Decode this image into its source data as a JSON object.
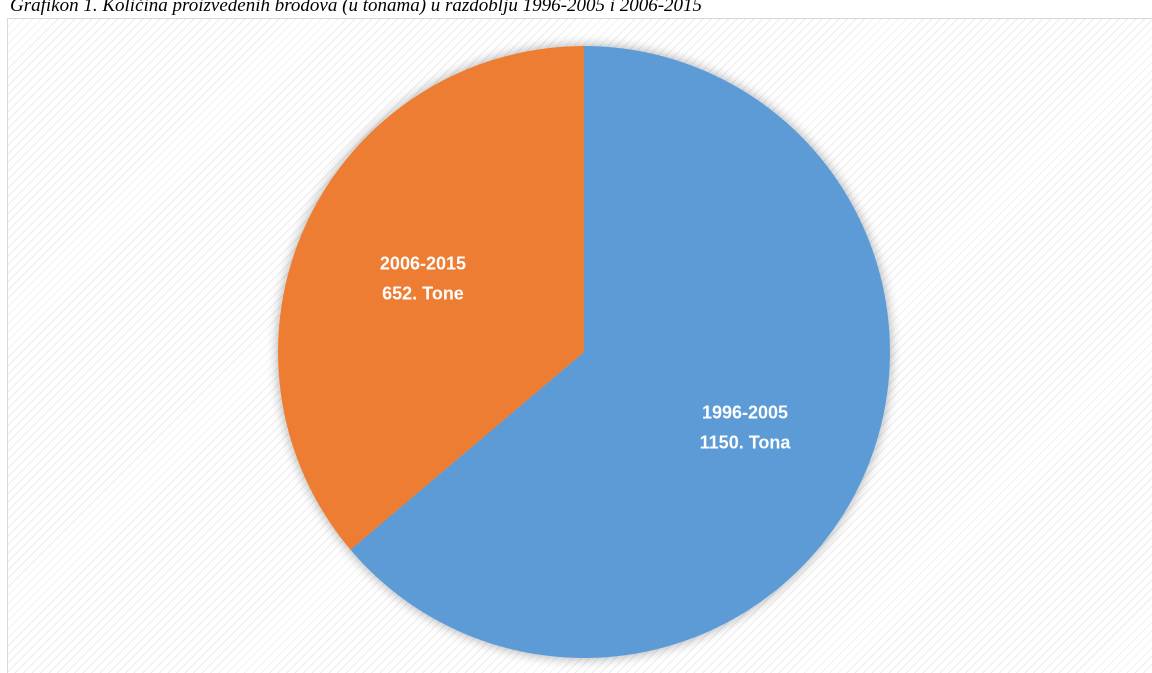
{
  "caption": "Grafikon 1. Količina proizvedenih brodova (u tonama) u razdoblju 1996-2005 i 2006-2015",
  "chart_data": {
    "type": "pie",
    "title": "",
    "slices": [
      {
        "name": "1996-2005",
        "value": 1150,
        "label": "1150. Tona",
        "color": "#5b9bd5"
      },
      {
        "name": "2006-2015",
        "value": 652,
        "label": "652. Tone",
        "color": "#ed7d31"
      }
    ],
    "start_angle_deg": 0,
    "direction": "clockwise",
    "legend": "none",
    "data_labels": "inside"
  }
}
